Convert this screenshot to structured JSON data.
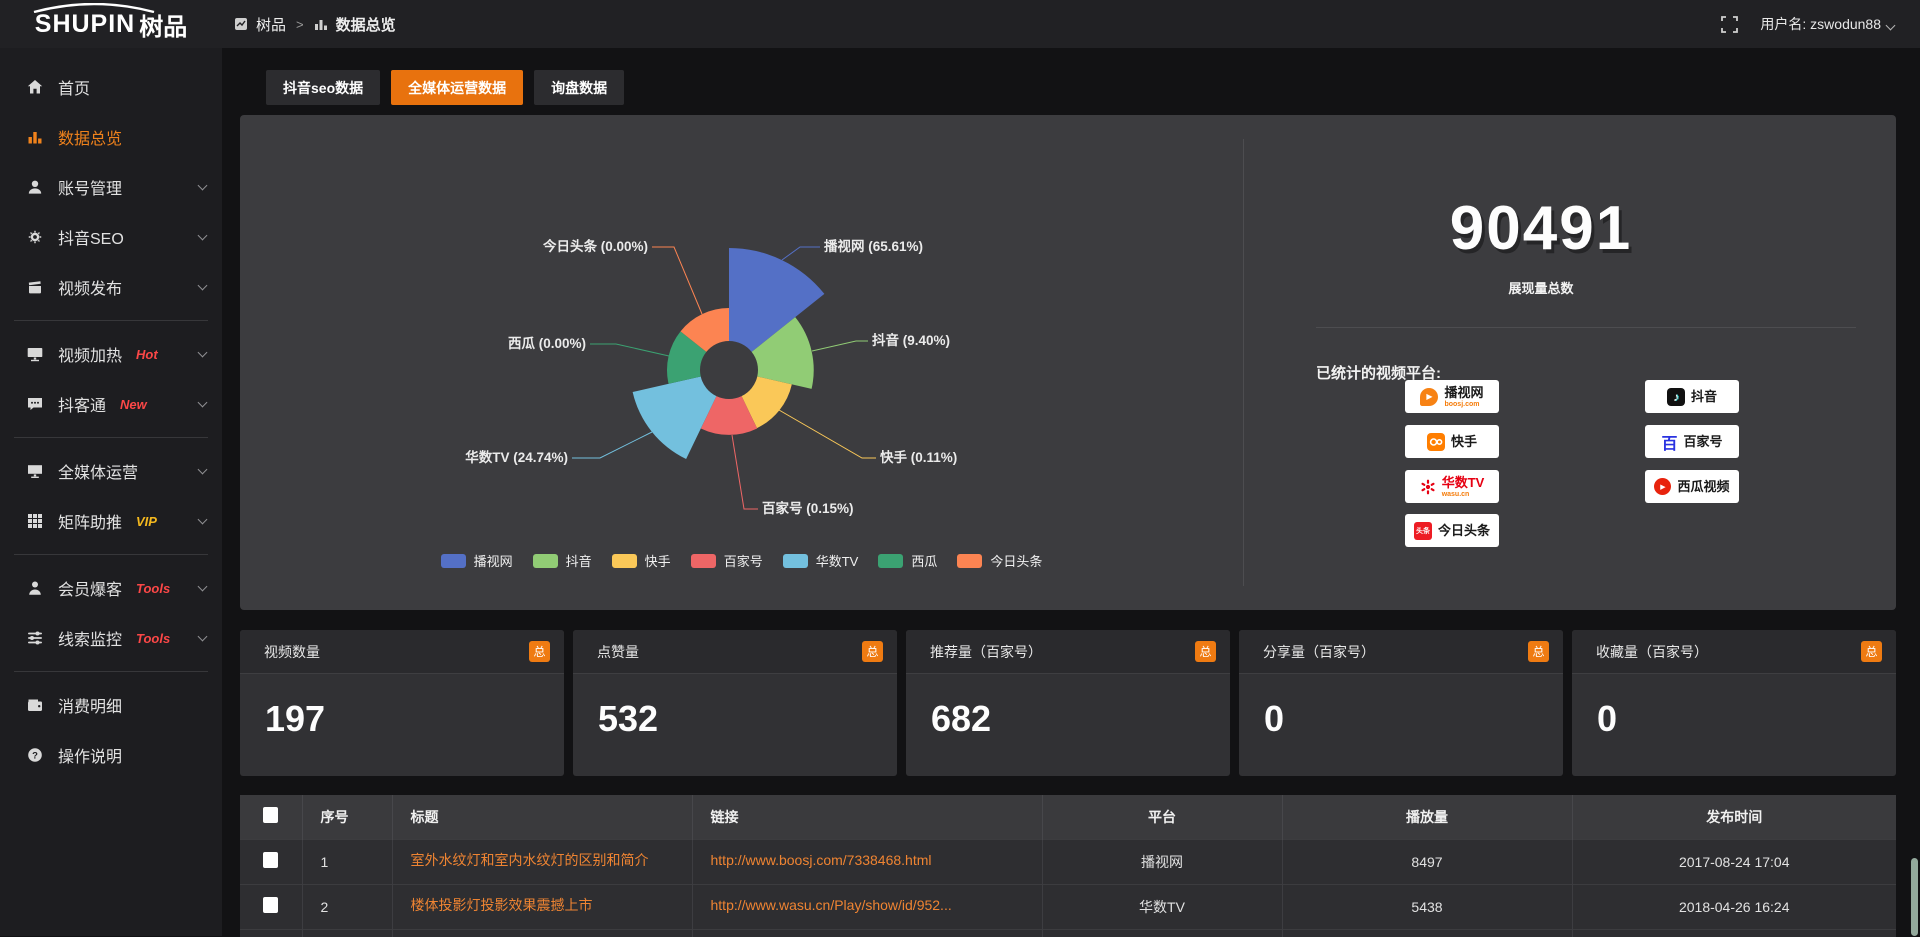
{
  "topbar": {
    "logo_text": "SHUPIN",
    "logo_suffix": "树品",
    "breadcrumb": {
      "root": "树品",
      "separator": ">",
      "current": "数据总览"
    },
    "username": "用户名: zswodun88"
  },
  "sidebar": {
    "items": [
      {
        "label": "首页",
        "badge": "",
        "active": false
      },
      {
        "label": "数据总览",
        "badge": "",
        "active": true
      },
      {
        "label": "账号管理",
        "badge": "",
        "active": false
      },
      {
        "label": "抖音SEO",
        "badge": "",
        "active": false
      },
      {
        "label": "视频发布",
        "badge": "",
        "active": false
      },
      {
        "label": "视频加热",
        "badge": "Hot",
        "active": false
      },
      {
        "label": "抖客通",
        "badge": "New",
        "active": false
      },
      {
        "label": "全媒体运营",
        "badge": "",
        "active": false
      },
      {
        "label": "矩阵助推",
        "badge": "VIP",
        "active": false
      },
      {
        "label": "会员爆客",
        "badge": "Tools",
        "active": false
      },
      {
        "label": "线索监控",
        "badge": "Tools",
        "active": false
      },
      {
        "label": "消费明细",
        "badge": "",
        "active": false
      },
      {
        "label": "操作说明",
        "badge": "",
        "active": false
      }
    ]
  },
  "tabs": [
    {
      "label": "抖音seo数据",
      "active": false
    },
    {
      "label": "全媒体运营数据",
      "active": true
    },
    {
      "label": "询盘数据",
      "active": false
    }
  ],
  "chart_data": {
    "type": "pie",
    "subtype": "nightingale-rose",
    "unit": "percent",
    "legend_position": "bottom",
    "slices": [
      {
        "name": "播视网",
        "value": 65.61,
        "color": "#5470c6"
      },
      {
        "name": "抖音",
        "value": 9.4,
        "color": "#91cc75"
      },
      {
        "name": "快手",
        "value": 0.11,
        "color": "#fac858"
      },
      {
        "name": "百家号",
        "value": 0.15,
        "color": "#ee6666"
      },
      {
        "name": "华数TV",
        "value": 24.74,
        "color": "#73c0de"
      },
      {
        "name": "西瓜",
        "value": 0.0,
        "color": "#3ba272"
      },
      {
        "name": "今日头条",
        "value": 0.0,
        "color": "#fc8452"
      }
    ]
  },
  "summary": {
    "total_value": "90491",
    "total_label": "展现量总数",
    "platforms_title": "已统计的视频平台:",
    "platforms": [
      {
        "name": "播视网",
        "sub": "boosj.com"
      },
      {
        "name": "抖音",
        "sub": ""
      },
      {
        "name": "快手",
        "sub": ""
      },
      {
        "name": "百家号",
        "sub": ""
      },
      {
        "name": "华数TV",
        "sub": "wasu.cn"
      },
      {
        "name": "西瓜视频",
        "sub": ""
      },
      {
        "name": "今日头条",
        "sub": ""
      }
    ]
  },
  "icons": {
    "play": "▶",
    "note": "♪",
    "bai": "百",
    "toutiao": "头条"
  },
  "stat_cards": [
    {
      "label": "视频数量",
      "badge": "总",
      "value": "197"
    },
    {
      "label": "点赞量",
      "badge": "总",
      "value": "532"
    },
    {
      "label": "推荐量（百家号）",
      "badge": "总",
      "value": "682"
    },
    {
      "label": "分享量（百家号）",
      "badge": "总",
      "value": "0"
    },
    {
      "label": "收藏量（百家号）",
      "badge": "总",
      "value": "0"
    }
  ],
  "table": {
    "headers": [
      "序号",
      "标题",
      "链接",
      "平台",
      "播放量",
      "发布时间"
    ],
    "rows": [
      {
        "index": "1",
        "title": "室外水纹灯和室内水纹灯的区别和简介",
        "link": "http://www.boosj.com/7338468.html",
        "platform": "播视网",
        "plays": "8497",
        "published": "2017-08-24 17:04"
      },
      {
        "index": "2",
        "title": "楼体投影灯投影效果震撼上市",
        "link": "http://www.wasu.cn/Play/show/id/952...",
        "platform": "华数TV",
        "plays": "5438",
        "published": "2018-04-26 16:24"
      }
    ]
  },
  "colors": {
    "accent": "#ef7b12",
    "link": "#ef8432",
    "badge_red": "#fb4747",
    "badge_gold": "#f5b91e",
    "panel_bg": "#3c3c3f",
    "card_bg": "#313134",
    "sidebar_bg": "#1d1d20",
    "topbar_bg": "#212124"
  }
}
